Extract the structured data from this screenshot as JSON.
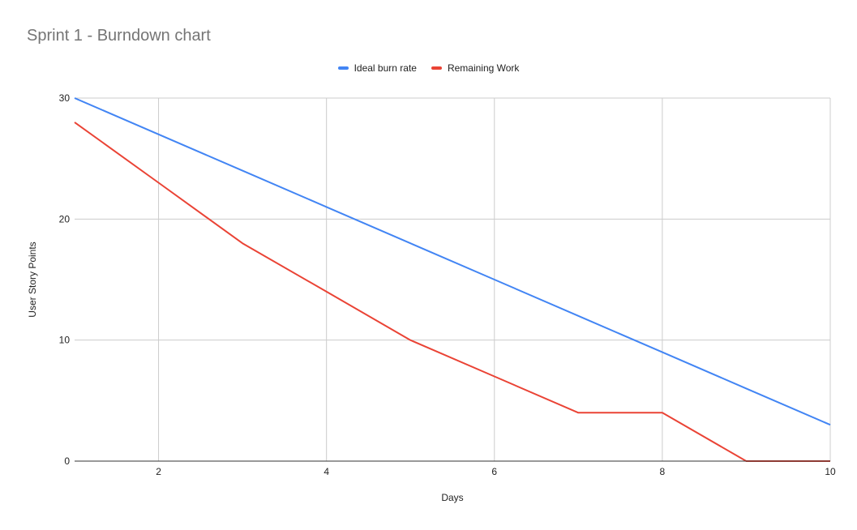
{
  "chart_data": {
    "type": "line",
    "title": "Sprint 1 - Burndown chart",
    "xlabel": "Days",
    "ylabel": "User Story Points",
    "xlim": [
      1,
      10
    ],
    "ylim": [
      0,
      30
    ],
    "x_ticks": [
      2,
      4,
      6,
      8,
      10
    ],
    "y_ticks": [
      0,
      10,
      20,
      30
    ],
    "grid": true,
    "legend_position": "top-center",
    "x": [
      1,
      2,
      3,
      4,
      5,
      6,
      7,
      8,
      9,
      10
    ],
    "series": [
      {
        "name": "Ideal burn rate",
        "color": "#4285f4",
        "values": [
          30,
          27,
          24,
          21,
          18,
          15,
          12,
          9,
          6,
          3
        ]
      },
      {
        "name": "Remaining Work",
        "color": "#ea4335",
        "values": [
          28,
          23,
          18,
          14,
          10,
          7,
          4,
          4,
          0,
          0
        ]
      }
    ]
  }
}
